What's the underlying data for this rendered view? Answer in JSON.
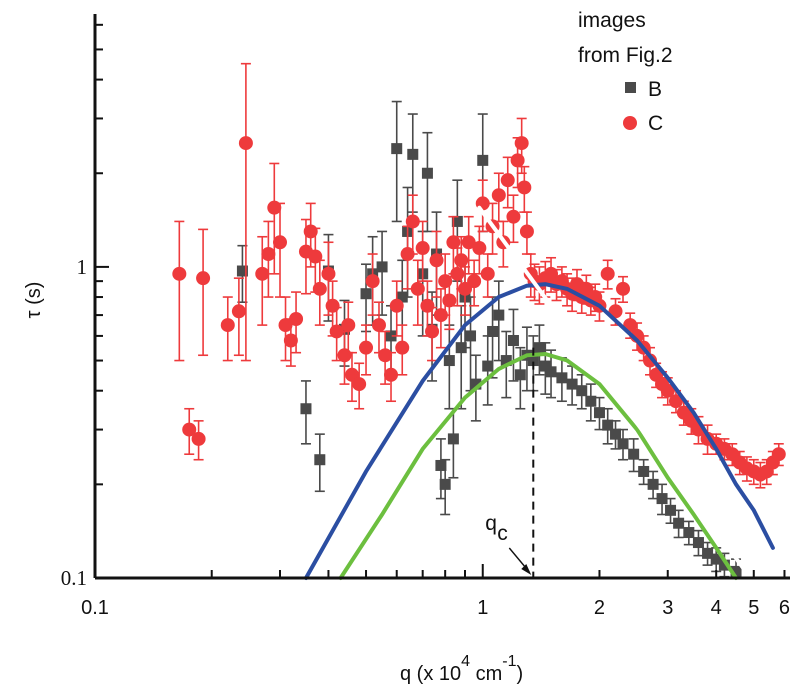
{
  "chart_data": {
    "type": "scatter",
    "title": "",
    "xlabel": "q (x 10^4 cm^-1)",
    "xlabel_parts": {
      "main": "q (x 10",
      "exp": "4",
      "mid": " cm",
      "exp2": "-1",
      "end": ")"
    },
    "ylabel": "τ (s)",
    "xscale": "log",
    "yscale": "log",
    "xlim": [
      0.1,
      6.2
    ],
    "ylim": [
      0.1,
      6.5
    ],
    "x_tick_labels": [
      {
        "value": 0.1,
        "label": "0.1"
      },
      {
        "value": 1,
        "label": "1"
      },
      {
        "value": 2,
        "label": "2"
      },
      {
        "value": 3,
        "label": "3"
      },
      {
        "value": 4,
        "label": "4"
      },
      {
        "value": 5,
        "label": "5"
      },
      {
        "value": 6,
        "label": "6"
      }
    ],
    "y_tick_labels": [
      {
        "value": 0.1,
        "label": "0.1"
      },
      {
        "value": 1,
        "label": "1"
      }
    ],
    "legend": {
      "title_line1": "images",
      "title_line2": "from Fig.2",
      "placement": "top-right",
      "entries": [
        {
          "label": "B",
          "marker": "square",
          "color": "#4a4a4a"
        },
        {
          "label": "C",
          "marker": "circle",
          "color": "#ee3a3c"
        }
      ]
    },
    "annotation": {
      "text": "q",
      "subscript": "c",
      "x": 1.35
    },
    "series": [
      {
        "name": "B",
        "marker": "square",
        "color": "#4a4a4a",
        "points": [
          [
            0.24,
            0.97,
            0.2
          ],
          [
            0.35,
            0.35,
            0.08
          ],
          [
            0.38,
            0.24,
            0.05
          ],
          [
            0.4,
            0.97,
            0.3
          ],
          [
            0.44,
            0.63,
            0.15
          ],
          [
            0.5,
            0.82,
            0.2
          ],
          [
            0.52,
            0.95,
            0.3
          ],
          [
            0.55,
            1.0,
            0.3
          ],
          [
            0.58,
            0.6,
            0.15
          ],
          [
            0.6,
            2.4,
            1.0
          ],
          [
            0.62,
            0.8,
            0.25
          ],
          [
            0.64,
            1.3,
            0.5
          ],
          [
            0.66,
            2.3,
            0.8
          ],
          [
            0.7,
            0.95,
            0.35
          ],
          [
            0.72,
            2.0,
            0.7
          ],
          [
            0.74,
            0.63,
            0.2
          ],
          [
            0.76,
            1.1,
            0.4
          ],
          [
            0.78,
            0.23,
            0.05
          ],
          [
            0.8,
            0.2,
            0.04
          ],
          [
            0.82,
            0.5,
            0.15
          ],
          [
            0.84,
            0.28,
            0.07
          ],
          [
            0.86,
            1.4,
            0.5
          ],
          [
            0.88,
            0.55,
            0.2
          ],
          [
            0.9,
            0.8,
            0.25
          ],
          [
            0.93,
            0.6,
            0.2
          ],
          [
            0.96,
            0.42,
            0.1
          ],
          [
            1.0,
            2.2,
            0.9
          ],
          [
            1.03,
            0.48,
            0.12
          ],
          [
            1.06,
            0.62,
            0.18
          ],
          [
            1.1,
            0.7,
            0.2
          ],
          [
            1.15,
            0.5,
            0.12
          ],
          [
            1.2,
            0.58,
            0.15
          ],
          [
            1.25,
            0.45,
            0.1
          ],
          [
            1.3,
            0.52,
            0.12
          ],
          [
            1.35,
            0.5,
            0.1
          ],
          [
            1.4,
            0.55,
            0.1
          ],
          [
            1.45,
            0.48,
            0.09
          ],
          [
            1.5,
            0.46,
            0.08
          ],
          [
            1.6,
            0.44,
            0.07
          ],
          [
            1.7,
            0.42,
            0.06
          ],
          [
            1.8,
            0.4,
            0.05
          ],
          [
            1.9,
            0.37,
            0.05
          ],
          [
            2.0,
            0.34,
            0.04
          ],
          [
            2.1,
            0.31,
            0.04
          ],
          [
            2.2,
            0.29,
            0.03
          ],
          [
            2.3,
            0.27,
            0.03
          ],
          [
            2.45,
            0.25,
            0.03
          ],
          [
            2.6,
            0.22,
            0.02
          ],
          [
            2.75,
            0.2,
            0.02
          ],
          [
            2.9,
            0.18,
            0.02
          ],
          [
            3.05,
            0.165,
            0.015
          ],
          [
            3.2,
            0.15,
            0.015
          ],
          [
            3.4,
            0.14,
            0.012
          ],
          [
            3.6,
            0.13,
            0.012
          ],
          [
            3.8,
            0.12,
            0.01
          ],
          [
            4.0,
            0.115,
            0.01
          ],
          [
            4.2,
            0.11,
            0.01
          ],
          [
            4.5,
            0.105,
            0.01
          ]
        ]
      },
      {
        "name": "C",
        "marker": "circle",
        "color": "#ee3a3c",
        "points": [
          [
            0.165,
            0.95,
            0.45
          ],
          [
            0.175,
            0.3,
            0.05
          ],
          [
            0.185,
            0.28,
            0.04
          ],
          [
            0.19,
            0.92,
            0.4
          ],
          [
            0.22,
            0.65,
            0.15
          ],
          [
            0.235,
            0.72,
            0.2
          ],
          [
            0.245,
            2.5,
            2.0
          ],
          [
            0.27,
            0.95,
            0.3
          ],
          [
            0.28,
            1.1,
            0.3
          ],
          [
            0.29,
            1.55,
            0.6
          ],
          [
            0.3,
            1.2,
            0.4
          ],
          [
            0.31,
            0.65,
            0.15
          ],
          [
            0.32,
            0.58,
            0.1
          ],
          [
            0.33,
            0.68,
            0.15
          ],
          [
            0.35,
            1.12,
            0.3
          ],
          [
            0.36,
            1.3,
            0.3
          ],
          [
            0.37,
            1.08,
            0.25
          ],
          [
            0.38,
            0.85,
            0.2
          ],
          [
            0.4,
            0.95,
            0.25
          ],
          [
            0.41,
            0.75,
            0.15
          ],
          [
            0.42,
            0.62,
            0.12
          ],
          [
            0.44,
            0.52,
            0.1
          ],
          [
            0.45,
            0.65,
            0.12
          ],
          [
            0.46,
            0.45,
            0.08
          ],
          [
            0.48,
            0.42,
            0.07
          ],
          [
            0.5,
            0.55,
            0.1
          ],
          [
            0.52,
            0.9,
            0.2
          ],
          [
            0.54,
            0.65,
            0.12
          ],
          [
            0.56,
            0.52,
            0.1
          ],
          [
            0.58,
            0.45,
            0.08
          ],
          [
            0.6,
            0.75,
            0.15
          ],
          [
            0.62,
            0.55,
            0.1
          ],
          [
            0.64,
            1.1,
            0.25
          ],
          [
            0.66,
            1.4,
            0.3
          ],
          [
            0.68,
            0.85,
            0.2
          ],
          [
            0.7,
            1.15,
            0.25
          ],
          [
            0.72,
            0.75,
            0.15
          ],
          [
            0.74,
            0.62,
            0.12
          ],
          [
            0.76,
            1.05,
            0.25
          ],
          [
            0.78,
            0.7,
            0.15
          ],
          [
            0.8,
            0.9,
            0.2
          ],
          [
            0.82,
            0.78,
            0.15
          ],
          [
            0.84,
            1.2,
            0.25
          ],
          [
            0.86,
            0.95,
            0.2
          ],
          [
            0.88,
            1.05,
            0.2
          ],
          [
            0.9,
            0.85,
            0.15
          ],
          [
            0.92,
            1.2,
            0.25
          ],
          [
            0.95,
            0.9,
            0.15
          ],
          [
            0.98,
            1.15,
            0.2
          ],
          [
            1.0,
            1.6,
            0.3
          ],
          [
            1.03,
            0.95,
            0.15
          ],
          [
            1.06,
            1.35,
            0.25
          ],
          [
            1.1,
            1.7,
            0.3
          ],
          [
            1.13,
            1.2,
            0.2
          ],
          [
            1.16,
            1.9,
            0.35
          ],
          [
            1.2,
            1.45,
            0.25
          ],
          [
            1.23,
            2.2,
            0.4
          ],
          [
            1.26,
            2.5,
            0.5
          ],
          [
            1.28,
            1.8,
            0.3
          ],
          [
            1.3,
            1.3,
            0.2
          ],
          [
            1.33,
            0.95,
            0.15
          ],
          [
            1.36,
            0.9,
            0.12
          ],
          [
            1.4,
            0.88,
            0.12
          ],
          [
            1.45,
            0.92,
            0.12
          ],
          [
            1.5,
            0.95,
            0.12
          ],
          [
            1.55,
            0.88,
            0.1
          ],
          [
            1.6,
            0.9,
            0.1
          ],
          [
            1.65,
            0.85,
            0.1
          ],
          [
            1.7,
            0.82,
            0.1
          ],
          [
            1.75,
            0.88,
            0.1
          ],
          [
            1.8,
            0.8,
            0.09
          ],
          [
            1.85,
            0.85,
            0.09
          ],
          [
            1.9,
            0.78,
            0.08
          ],
          [
            1.95,
            0.8,
            0.08
          ],
          [
            2.0,
            0.75,
            0.08
          ],
          [
            2.1,
            0.95,
            0.1
          ],
          [
            2.2,
            0.72,
            0.07
          ],
          [
            2.3,
            0.85,
            0.08
          ],
          [
            2.4,
            0.65,
            0.06
          ],
          [
            2.5,
            0.6,
            0.06
          ],
          [
            2.6,
            0.55,
            0.05
          ],
          [
            2.7,
            0.5,
            0.05
          ],
          [
            2.8,
            0.45,
            0.04
          ],
          [
            2.9,
            0.42,
            0.04
          ],
          [
            3.0,
            0.4,
            0.04
          ],
          [
            3.15,
            0.37,
            0.03
          ],
          [
            3.3,
            0.34,
            0.03
          ],
          [
            3.45,
            0.32,
            0.03
          ],
          [
            3.6,
            0.3,
            0.03
          ],
          [
            3.8,
            0.28,
            0.03
          ],
          [
            4.0,
            0.27,
            0.02
          ],
          [
            4.2,
            0.26,
            0.02
          ],
          [
            4.4,
            0.25,
            0.02
          ],
          [
            4.6,
            0.235,
            0.02
          ],
          [
            4.8,
            0.225,
            0.02
          ],
          [
            5.0,
            0.22,
            0.02
          ],
          [
            5.2,
            0.215,
            0.02
          ],
          [
            5.4,
            0.22,
            0.02
          ],
          [
            5.6,
            0.235,
            0.02
          ],
          [
            5.8,
            0.25,
            0.02
          ]
        ]
      }
    ],
    "lines": [
      {
        "name": "blue-fit",
        "color": "#2b4ea2",
        "points": [
          [
            0.35,
            0.1
          ],
          [
            0.5,
            0.22
          ],
          [
            0.7,
            0.43
          ],
          [
            0.9,
            0.65
          ],
          [
            1.1,
            0.8
          ],
          [
            1.3,
            0.87
          ],
          [
            1.45,
            0.88
          ],
          [
            1.65,
            0.85
          ],
          [
            2.0,
            0.75
          ],
          [
            2.5,
            0.58
          ],
          [
            3.0,
            0.44
          ],
          [
            3.5,
            0.34
          ],
          [
            4.0,
            0.26
          ],
          [
            4.5,
            0.2
          ],
          [
            5.0,
            0.165
          ],
          [
            5.6,
            0.125
          ]
        ]
      },
      {
        "name": "green-fit",
        "color": "#6cbf3f",
        "points": [
          [
            0.43,
            0.1
          ],
          [
            0.55,
            0.16
          ],
          [
            0.7,
            0.26
          ],
          [
            0.9,
            0.38
          ],
          [
            1.1,
            0.47
          ],
          [
            1.3,
            0.52
          ],
          [
            1.45,
            0.525
          ],
          [
            1.65,
            0.5
          ],
          [
            2.0,
            0.42
          ],
          [
            2.5,
            0.3
          ],
          [
            3.0,
            0.21
          ],
          [
            3.5,
            0.16
          ],
          [
            4.0,
            0.125
          ],
          [
            4.5,
            0.1
          ]
        ]
      },
      {
        "name": "white-power-law",
        "color": "#ffffff",
        "points": [
          [
            0.98,
            1.55
          ],
          [
            4.9,
            0.1
          ]
        ]
      }
    ]
  }
}
